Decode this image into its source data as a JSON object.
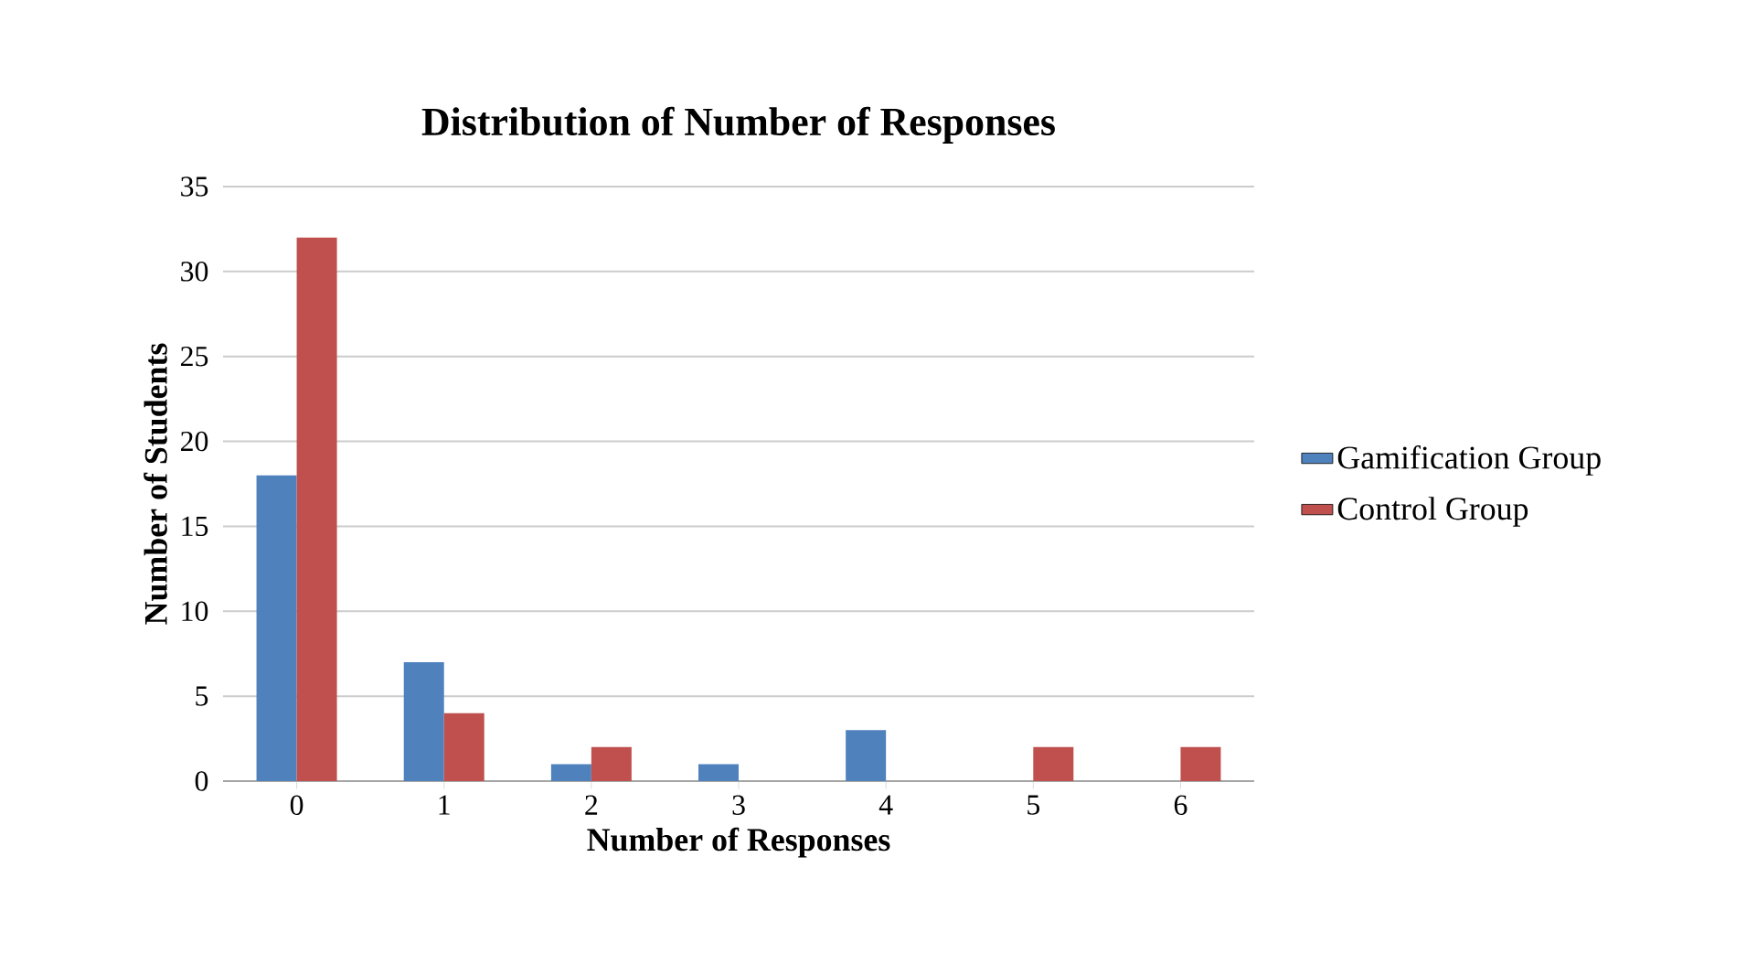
{
  "chart_data": {
    "type": "bar",
    "title": "Distribution of Number of Responses",
    "xlabel": "Number of Responses",
    "ylabel": "Number of Students",
    "categories": [
      "0",
      "1",
      "2",
      "3",
      "4",
      "5",
      "6"
    ],
    "series": [
      {
        "name": "Gamification Group",
        "color": "#4f81bd",
        "values": [
          18,
          7,
          1,
          1,
          3,
          0,
          0
        ]
      },
      {
        "name": "Control Group",
        "color": "#c0504d",
        "values": [
          32,
          4,
          2,
          0,
          0,
          2,
          2
        ]
      }
    ],
    "ylim": [
      0,
      35
    ],
    "yticks": [
      0,
      5,
      10,
      15,
      20,
      25,
      30,
      35
    ],
    "grid": "y",
    "legend": "right"
  }
}
